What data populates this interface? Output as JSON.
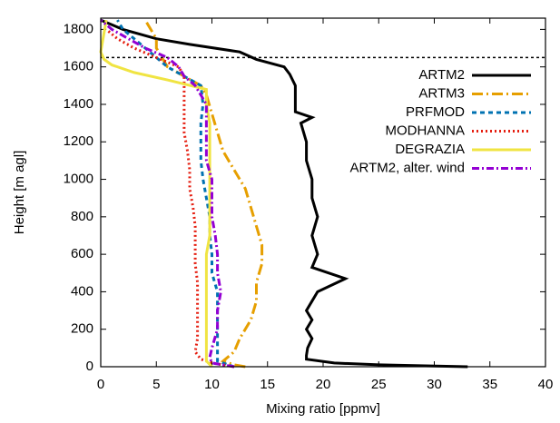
{
  "chart_data": {
    "type": "line",
    "x_label": "Mixing ratio [ppmv]",
    "y_label": "Height [m agl]",
    "xlim": [
      0,
      40
    ],
    "xticks": [
      0,
      5,
      10,
      15,
      20,
      25,
      30,
      35,
      40
    ],
    "ylim": [
      0,
      1860
    ],
    "yticks": [
      0,
      200,
      400,
      600,
      800,
      1000,
      1200,
      1400,
      1600,
      1800
    ],
    "hline": 1650,
    "legend": "top-right",
    "series": [
      {
        "name": "ARTM2",
        "color": "#000000",
        "dash": "none",
        "x": [
          33,
          25,
          21,
          18.5,
          18.5,
          18.6,
          19,
          18.5,
          19,
          18.5,
          19,
          19.5,
          22,
          19,
          19.5,
          19,
          19.5,
          19,
          19,
          18.5,
          18.5,
          18,
          19,
          17.5,
          17.5,
          17.5,
          17,
          16.5,
          14,
          12.5,
          8,
          5,
          2,
          0
        ],
        "y": [
          0,
          10,
          20,
          40,
          60,
          100,
          150,
          200,
          250,
          300,
          350,
          400,
          470,
          530,
          600,
          700,
          800,
          900,
          1000,
          1100,
          1200,
          1300,
          1330,
          1360,
          1400,
          1500,
          1560,
          1600,
          1640,
          1680,
          1720,
          1750,
          1800,
          1850
        ]
      },
      {
        "name": "ARTM3",
        "color": "#e69f00",
        "dash": "12 4 2 4",
        "x": [
          13,
          12,
          11,
          12,
          12.5,
          13.5,
          14,
          14,
          14.5,
          14.5,
          14,
          13.5,
          13,
          12,
          11,
          10.5,
          10,
          9.5,
          9,
          7.5,
          6,
          5.5,
          5,
          5,
          4.5,
          4
        ],
        "y": [
          0,
          10,
          30,
          80,
          150,
          250,
          350,
          450,
          550,
          650,
          750,
          850,
          950,
          1050,
          1150,
          1250,
          1350,
          1450,
          1500,
          1550,
          1600,
          1650,
          1700,
          1750,
          1800,
          1850
        ]
      },
      {
        "name": "PRFMOD",
        "color": "#0072b2",
        "dash": "5 4",
        "x": [
          12,
          10.5,
          10.5,
          10.5,
          10.5,
          10.5,
          10,
          10,
          9.8,
          9.8,
          9.5,
          9.2,
          9,
          9,
          9,
          9.2,
          9,
          7.5,
          6,
          5,
          4,
          3,
          2,
          1.5
        ],
        "y": [
          0,
          30,
          100,
          200,
          300,
          400,
          500,
          600,
          700,
          800,
          900,
          1000,
          1100,
          1200,
          1300,
          1400,
          1500,
          1550,
          1600,
          1650,
          1700,
          1750,
          1800,
          1850
        ]
      },
      {
        "name": "MODHANNA",
        "color": "#e51e10",
        "dash": "2 3",
        "x": [
          12,
          10,
          9,
          8.5,
          8.7,
          8.7,
          8.7,
          8.7,
          8.5,
          8.5,
          8.5,
          8.3,
          8,
          8,
          7.8,
          7.5,
          7.5,
          7.5,
          7.5,
          7,
          5,
          3,
          1.5,
          0.5
        ],
        "y": [
          0,
          20,
          40,
          80,
          150,
          250,
          350,
          450,
          550,
          650,
          750,
          850,
          950,
          1050,
          1150,
          1250,
          1350,
          1450,
          1550,
          1600,
          1650,
          1700,
          1750,
          1800
        ]
      },
      {
        "name": "DEGRAZIA",
        "color": "#f0e442",
        "dash": "none",
        "x": [
          10,
          9.5,
          9.5,
          9.5,
          9.5,
          9.5,
          9.5,
          9.5,
          9.8,
          9.8,
          9.8,
          9.8,
          9.8,
          9.8,
          9.8,
          9.5,
          9.5,
          6,
          3,
          1,
          0.3,
          0,
          0.5
        ],
        "y": [
          0,
          30,
          100,
          200,
          300,
          400,
          500,
          600,
          700,
          800,
          900,
          1000,
          1100,
          1200,
          1300,
          1400,
          1480,
          1530,
          1570,
          1610,
          1640,
          1680,
          1850
        ]
      },
      {
        "name": "ARTM2, alter. wind",
        "color": "#9400d3",
        "dash": "8 3 2 3",
        "x": [
          12,
          10,
          9.8,
          10,
          10.5,
          10.5,
          10.8,
          10.5,
          10.5,
          10.3,
          10,
          10,
          10,
          9.5,
          9.5,
          9.5,
          9.5,
          8.5,
          7.5,
          7,
          6,
          4,
          2.5,
          1,
          0
        ],
        "y": [
          0,
          20,
          50,
          100,
          200,
          300,
          400,
          500,
          600,
          700,
          800,
          900,
          1000,
          1100,
          1200,
          1300,
          1400,
          1500,
          1550,
          1600,
          1650,
          1700,
          1750,
          1800,
          1850
        ]
      }
    ]
  }
}
